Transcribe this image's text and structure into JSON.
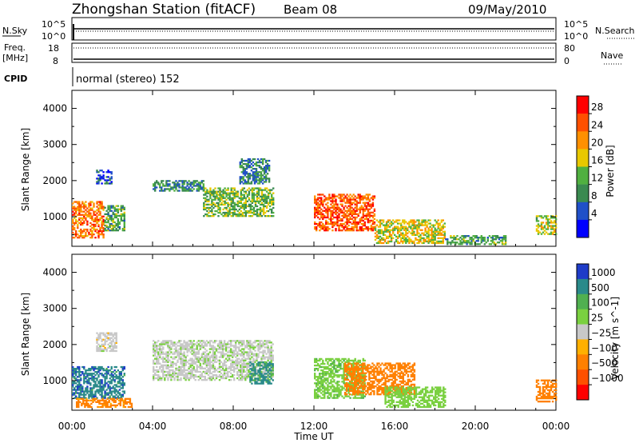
{
  "header": {
    "station": "Zhongshan Station (fitACF)",
    "beam": "Beam 08",
    "date": "09/May/2010"
  },
  "top_panels": {
    "nsky_label": "N.Sky",
    "nsky_ticks": [
      "10^5",
      "10^0"
    ],
    "nsearch_label": "N.Search",
    "freq_label": "Freq.",
    "freq_unit": "[MHz]",
    "freq_ticks": [
      "18",
      "8"
    ],
    "nave_ticks": [
      "80",
      "0"
    ],
    "nave_label": "Nave",
    "cpid_label": "CPID",
    "cpid_value": "normal (stereo) 152"
  },
  "x_axis": {
    "label": "Time UT",
    "ticks": [
      "00:00",
      "04:00",
      "08:00",
      "12:00",
      "16:00",
      "20:00",
      "00:00"
    ],
    "range_hours": [
      0,
      24
    ]
  },
  "chart_data": [
    {
      "type": "heatmap",
      "panel": "power",
      "xlabel": "Time UT",
      "ylabel": "Slant Range [km]",
      "ylim": [
        180,
        4500
      ],
      "yticks": [
        "1000",
        "2000",
        "3000",
        "4000"
      ],
      "colorbar_label": "Power [dB]",
      "colorbar_ticks": [
        "4",
        "8",
        "12",
        "16",
        "20",
        "24",
        "28"
      ],
      "colorbar_range": [
        0,
        32
      ],
      "colors": [
        "#0000ff",
        "#2050c8",
        "#3a8a50",
        "#50b040",
        "#e8c800",
        "#ff9000",
        "#ff5000",
        "#ff0000"
      ],
      "regions": [
        {
          "t0": 0.0,
          "t1": 1.6,
          "r0": 400,
          "r1": 1400,
          "value": 24
        },
        {
          "t0": 1.6,
          "t1": 2.6,
          "r0": 600,
          "r1": 1300,
          "value": 12
        },
        {
          "t0": 1.2,
          "t1": 2.0,
          "r0": 1900,
          "r1": 2300,
          "value": 6
        },
        {
          "t0": 4.0,
          "t1": 6.5,
          "r0": 1700,
          "r1": 2000,
          "value": 10
        },
        {
          "t0": 6.5,
          "t1": 10.0,
          "r0": 1000,
          "r1": 1800,
          "value": 14
        },
        {
          "t0": 8.3,
          "t1": 9.8,
          "r0": 1900,
          "r1": 2600,
          "value": 9
        },
        {
          "t0": 12.0,
          "t1": 15.0,
          "r0": 600,
          "r1": 1600,
          "value": 26
        },
        {
          "t0": 15.0,
          "t1": 18.5,
          "r0": 250,
          "r1": 900,
          "value": 18
        },
        {
          "t0": 18.5,
          "t1": 21.5,
          "r0": 220,
          "r1": 450,
          "value": 12
        },
        {
          "t0": 23.0,
          "t1": 24.0,
          "r0": 500,
          "r1": 1000,
          "value": 16
        }
      ]
    },
    {
      "type": "heatmap",
      "panel": "velocity",
      "xlabel": "Time UT",
      "ylabel": "Slant Range [km]",
      "ylim": [
        180,
        4500
      ],
      "yticks": [
        "1000",
        "2000",
        "3000",
        "4000"
      ],
      "colorbar_label": "Velocity [m s^-1]",
      "colorbar_ticks": [
        "1000",
        "500",
        "100",
        "25",
        "−25",
        "−100",
        "−500",
        "−1000"
      ],
      "colors": [
        "#1e3cc8",
        "#2a8a8a",
        "#50b050",
        "#7ad040",
        "#c8c8c8",
        "#ffb000",
        "#ff8000",
        "#ff5000",
        "#ff0000"
      ],
      "regions": [
        {
          "t0": 0.0,
          "t1": 2.6,
          "r0": 500,
          "r1": 1400,
          "value": 800
        },
        {
          "t0": 0.2,
          "t1": 3.0,
          "r0": 250,
          "r1": 500,
          "value": -150
        },
        {
          "t0": 1.2,
          "t1": 2.2,
          "r0": 1800,
          "r1": 2300,
          "value": 0
        },
        {
          "t0": 4.0,
          "t1": 10.0,
          "r0": 1000,
          "r1": 2100,
          "value": 10
        },
        {
          "t0": 8.8,
          "t1": 10.0,
          "r0": 900,
          "r1": 1500,
          "value": 600
        },
        {
          "t0": 12.0,
          "t1": 14.5,
          "r0": 500,
          "r1": 1600,
          "value": 80
        },
        {
          "t0": 13.5,
          "t1": 17.0,
          "r0": 600,
          "r1": 1500,
          "value": -300
        },
        {
          "t0": 15.5,
          "t1": 18.5,
          "r0": 250,
          "r1": 800,
          "value": 60
        },
        {
          "t0": 23.0,
          "t1": 24.0,
          "r0": 400,
          "r1": 1000,
          "value": -200
        }
      ]
    }
  ],
  "colors": {
    "axis": "#000000",
    "background": "#ffffff",
    "groundscatter": "#c8c8c8"
  }
}
